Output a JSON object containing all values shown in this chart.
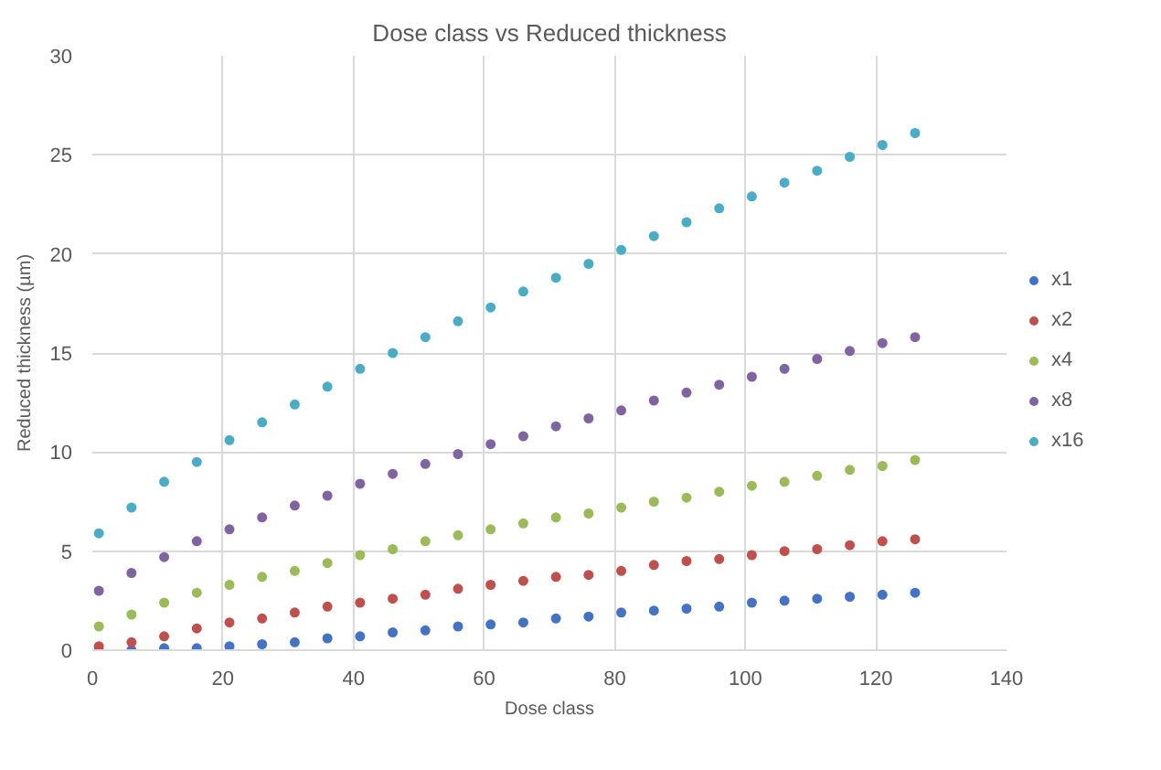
{
  "chart_data": {
    "type": "scatter",
    "title": "Dose class vs Reduced thickness",
    "xlabel": "Dose class",
    "ylabel": "Reduced thickness (µm)",
    "x": [
      1,
      6,
      11,
      16,
      21,
      26,
      31,
      36,
      41,
      46,
      51,
      56,
      61,
      66,
      71,
      76,
      81,
      86,
      91,
      96,
      101,
      106,
      111,
      116,
      121,
      126
    ],
    "series": [
      {
        "name": "x1",
        "color": "#4472c4",
        "values": [
          0.0,
          0.0,
          0.1,
          0.1,
          0.2,
          0.3,
          0.4,
          0.6,
          0.7,
          0.9,
          1.0,
          1.2,
          1.3,
          1.4,
          1.6,
          1.7,
          1.9,
          2.0,
          2.1,
          2.2,
          2.4,
          2.5,
          2.6,
          2.7,
          2.8,
          2.9
        ]
      },
      {
        "name": "x2",
        "color": "#c0504d",
        "values": [
          0.2,
          0.4,
          0.7,
          1.1,
          1.4,
          1.6,
          1.9,
          2.2,
          2.4,
          2.6,
          2.8,
          3.1,
          3.3,
          3.5,
          3.7,
          3.8,
          4.0,
          4.3,
          4.5,
          4.6,
          4.8,
          5.0,
          5.1,
          5.3,
          5.5,
          5.6
        ]
      },
      {
        "name": "x4",
        "color": "#9bbb59",
        "values": [
          1.2,
          1.8,
          2.4,
          2.9,
          3.3,
          3.7,
          4.0,
          4.4,
          4.8,
          5.1,
          5.5,
          5.8,
          6.1,
          6.4,
          6.7,
          6.9,
          7.2,
          7.5,
          7.7,
          8.0,
          8.3,
          8.5,
          8.8,
          9.1,
          9.3,
          9.6
        ]
      },
      {
        "name": "x8",
        "color": "#8064a2",
        "values": [
          3.0,
          3.9,
          4.7,
          5.5,
          6.1,
          6.7,
          7.3,
          7.8,
          8.4,
          8.9,
          9.4,
          9.9,
          10.4,
          10.8,
          11.3,
          11.7,
          12.1,
          12.6,
          13.0,
          13.4,
          13.8,
          14.2,
          14.7,
          15.1,
          15.5,
          15.8
        ]
      },
      {
        "name": "x16",
        "color": "#4bacc6",
        "values": [
          5.9,
          7.2,
          8.5,
          9.5,
          10.6,
          11.5,
          12.4,
          13.3,
          14.2,
          15.0,
          15.8,
          16.6,
          17.3,
          18.1,
          18.8,
          19.5,
          20.2,
          20.9,
          21.6,
          22.3,
          22.9,
          23.6,
          24.2,
          24.9,
          25.5,
          26.1
        ]
      }
    ],
    "xlim": [
      0,
      140
    ],
    "xticks": [
      0,
      20,
      40,
      60,
      80,
      100,
      120,
      140
    ],
    "ylim": [
      0,
      30
    ],
    "yticks": [
      0,
      5,
      10,
      15,
      20,
      25,
      30
    ],
    "grid": true,
    "legend": "right",
    "marker": "circle"
  }
}
